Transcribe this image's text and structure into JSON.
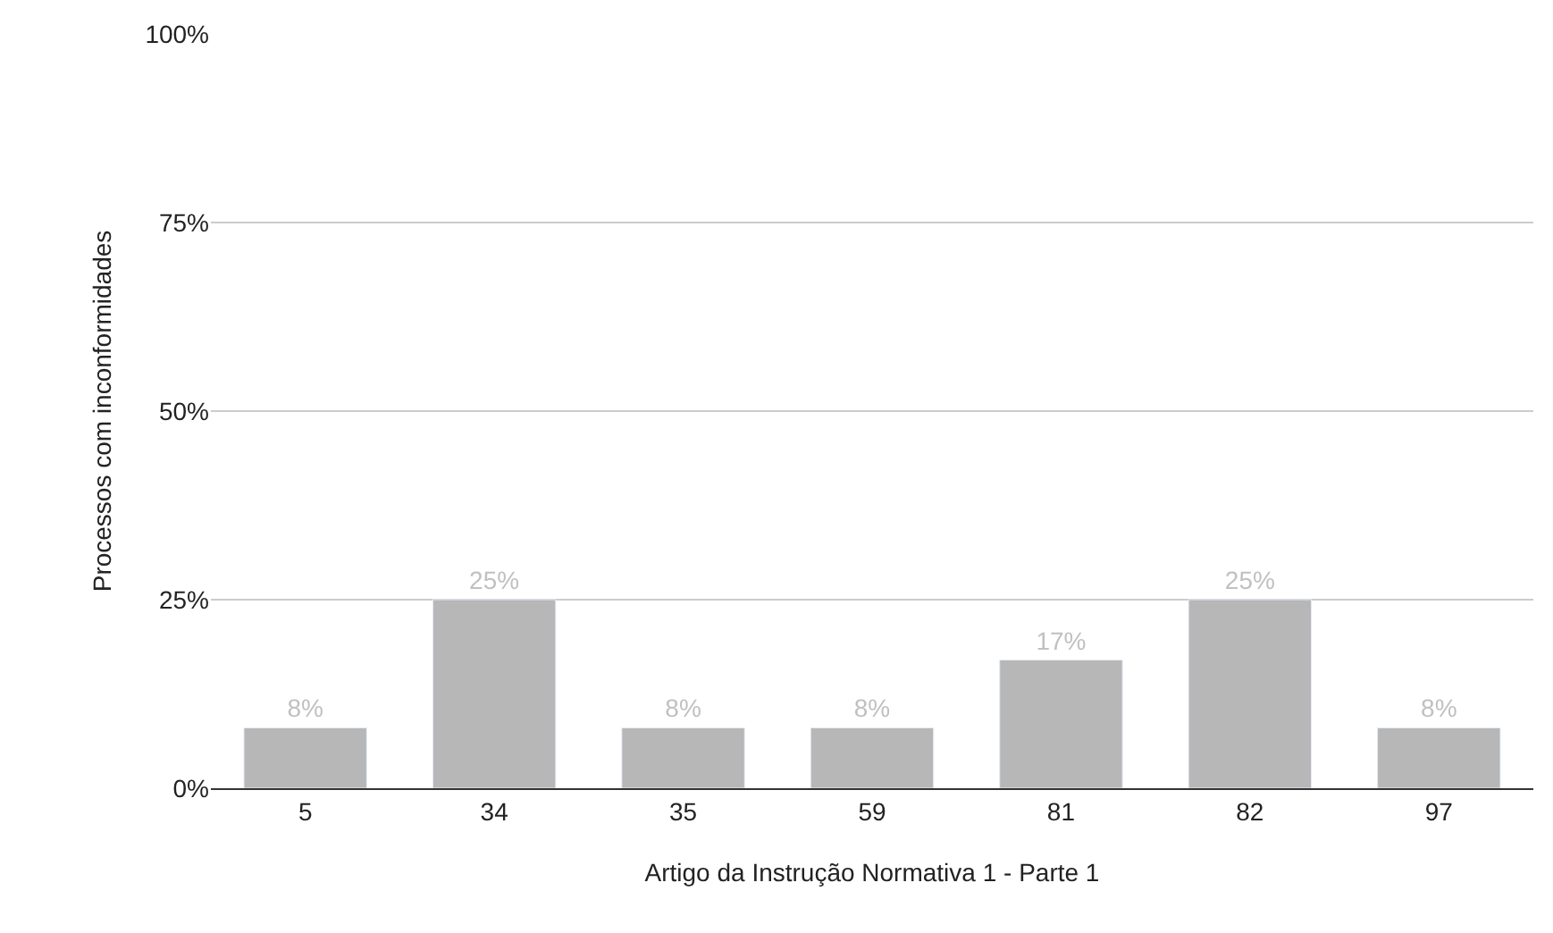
{
  "chart_data": {
    "type": "bar",
    "categories": [
      "5",
      "34",
      "35",
      "59",
      "81",
      "82",
      "97"
    ],
    "values": [
      8,
      25,
      8,
      8,
      17,
      25,
      8
    ],
    "value_labels": [
      "8%",
      "25%",
      "8%",
      "8%",
      "17%",
      "25%",
      "8%"
    ],
    "color": "#b7b7b7",
    "xlabel": "Artigo da Instrução Normativa 1 - Parte 1",
    "ylabel": "Processos com inconformidades",
    "ylim": [
      0,
      100
    ],
    "yticks": [
      {
        "value": 0,
        "label": "0%"
      },
      {
        "value": 25,
        "label": "25%"
      },
      {
        "value": 50,
        "label": "50%"
      },
      {
        "value": 75,
        "label": "75%"
      },
      {
        "value": 100,
        "label": "100%"
      }
    ],
    "grid": "y",
    "legend": false
  }
}
